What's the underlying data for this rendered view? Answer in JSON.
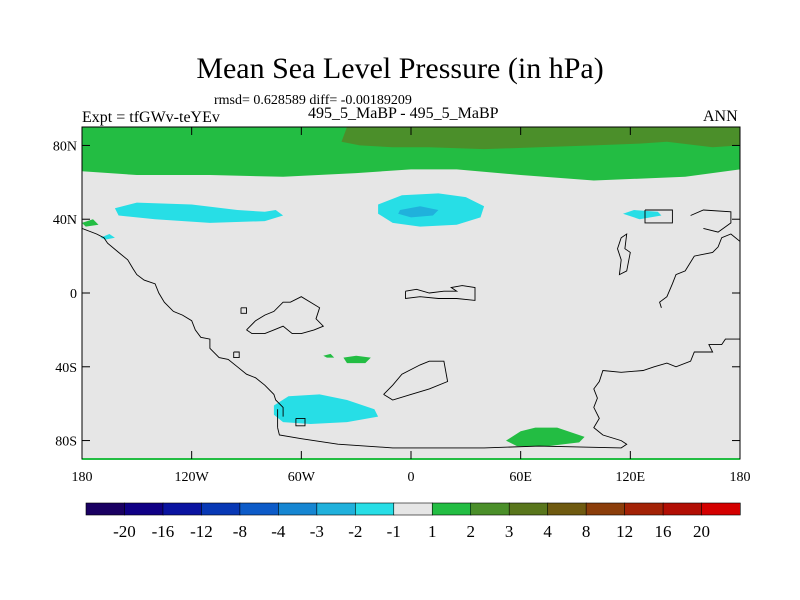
{
  "chart_data": {
    "type": "heatmap",
    "title": "Mean Sea Level Pressure (in hPa)",
    "stats_line": "rmsd= 0.628589 diff= -0.00189209",
    "expt_label": "Expt = tfGWv-teYEv",
    "cases_label": "495_5_MaBP - 495_5_MaBP",
    "season": "ANN",
    "xlim": [
      -180,
      180
    ],
    "ylim": [
      -90,
      90
    ],
    "x_ticks": [
      {
        "value": -180,
        "label": "180"
      },
      {
        "value": -120,
        "label": "120W"
      },
      {
        "value": -60,
        "label": "60W"
      },
      {
        "value": 0,
        "label": "0"
      },
      {
        "value": 60,
        "label": "60E"
      },
      {
        "value": 120,
        "label": "120E"
      },
      {
        "value": 180,
        "label": "180"
      }
    ],
    "y_ticks": [
      {
        "value": 80,
        "label": "80N"
      },
      {
        "value": 40,
        "label": "40N"
      },
      {
        "value": 0,
        "label": "0"
      },
      {
        "value": -40,
        "label": "40S"
      },
      {
        "value": -80,
        "label": "80S"
      }
    ],
    "colorbar": {
      "levels": [
        "-20",
        "-16",
        "-12",
        "-8",
        "-4",
        "-3",
        "-2",
        "-1",
        "1",
        "2",
        "3",
        "4",
        "8",
        "12",
        "16",
        "20"
      ],
      "colors": [
        "#1a0062",
        "#100085",
        "#0a13a0",
        "#0838b5",
        "#0d5bc8",
        "#1686d2",
        "#20b1dc",
        "#27dee6",
        "#e6e6e6",
        "#23bd43",
        "#4b8f2a",
        "#59761c",
        "#6f5a10",
        "#8b3d0a",
        "#a32206",
        "#b20e04",
        "#d40000"
      ]
    },
    "background_value_range": "-1 to 1",
    "regions": [
      {
        "name": "north-polar-band",
        "level": "1 to 2",
        "color": "#23bd43",
        "polygon": [
          [
            -180,
            90
          ],
          [
            180,
            90
          ],
          [
            180,
            67
          ],
          [
            150,
            63
          ],
          [
            100,
            61
          ],
          [
            60,
            64
          ],
          [
            25,
            67
          ],
          [
            0,
            67
          ],
          [
            -30,
            65
          ],
          [
            -70,
            63
          ],
          [
            -110,
            64
          ],
          [
            -150,
            64
          ],
          [
            -180,
            66
          ]
        ]
      },
      {
        "name": "arctic-high",
        "level": "2 to 3",
        "color": "#4b8f2a",
        "polygon": [
          [
            -35,
            90
          ],
          [
            180,
            90
          ],
          [
            180,
            80
          ],
          [
            165,
            79
          ],
          [
            140,
            82
          ],
          [
            125,
            81
          ],
          [
            100,
            80
          ],
          [
            70,
            79
          ],
          [
            40,
            78
          ],
          [
            10,
            79
          ],
          [
            -10,
            79
          ],
          [
            -28,
            80
          ],
          [
            -38,
            82
          ]
        ]
      },
      {
        "name": "north-pacific-low",
        "level": "-2 to -1",
        "color": "#27dee6",
        "polygon": [
          [
            -162,
            46
          ],
          [
            -150,
            49
          ],
          [
            -120,
            48
          ],
          [
            -95,
            45
          ],
          [
            -80,
            44
          ],
          [
            -74,
            45
          ],
          [
            -70,
            42
          ],
          [
            -80,
            39
          ],
          [
            -110,
            38
          ],
          [
            -140,
            40
          ],
          [
            -160,
            42
          ]
        ]
      },
      {
        "name": "north-atlantic-low",
        "level": "-2 to -1",
        "color": "#27dee6",
        "polygon": [
          [
            -18,
            48
          ],
          [
            -5,
            53
          ],
          [
            15,
            54
          ],
          [
            30,
            52
          ],
          [
            40,
            47
          ],
          [
            38,
            41
          ],
          [
            25,
            37
          ],
          [
            5,
            36
          ],
          [
            -10,
            38
          ],
          [
            -18,
            43
          ]
        ]
      },
      {
        "name": "north-atlantic-core",
        "level": "-3 to -2",
        "color": "#20b1dc",
        "polygon": [
          [
            -6,
            45
          ],
          [
            5,
            47
          ],
          [
            15,
            45
          ],
          [
            12,
            42
          ],
          [
            0,
            41
          ],
          [
            -7,
            43
          ]
        ]
      },
      {
        "name": "asia-low",
        "level": "-2 to -1",
        "color": "#27dee6",
        "polygon": [
          [
            116,
            43
          ],
          [
            122,
            45
          ],
          [
            135,
            44
          ],
          [
            137,
            42
          ],
          [
            125,
            40
          ]
        ]
      },
      {
        "name": "pacific-low-dot",
        "level": "-2 to -1",
        "color": "#27dee6",
        "polygon": [
          [
            -170,
            30
          ],
          [
            -165,
            32
          ],
          [
            -162,
            30
          ],
          [
            -167,
            29
          ]
        ]
      },
      {
        "name": "pacific-high-dot",
        "level": "1 to 2",
        "color": "#23bd43",
        "polygon": [
          [
            -180,
            38
          ],
          [
            -174,
            40
          ],
          [
            -171,
            37
          ],
          [
            -178,
            36
          ]
        ]
      },
      {
        "name": "southern-ocean-low",
        "level": "-2 to -1",
        "color": "#27dee6",
        "polygon": [
          [
            -75,
            -61
          ],
          [
            -67,
            -56
          ],
          [
            -50,
            -55
          ],
          [
            -35,
            -58
          ],
          [
            -20,
            -63
          ],
          [
            -18,
            -67
          ],
          [
            -35,
            -70
          ],
          [
            -55,
            -71
          ],
          [
            -70,
            -70
          ],
          [
            -75,
            -66
          ]
        ]
      },
      {
        "name": "indian-ocean-high",
        "level": "1 to 2",
        "color": "#23bd43",
        "polygon": [
          [
            52,
            -80
          ],
          [
            60,
            -75
          ],
          [
            68,
            -73
          ],
          [
            80,
            -73
          ],
          [
            95,
            -78
          ],
          [
            92,
            -81
          ],
          [
            75,
            -83
          ],
          [
            58,
            -83
          ]
        ]
      },
      {
        "name": "south-atlantic-high",
        "level": "1 to 2",
        "color": "#23bd43",
        "polygon": [
          [
            -37,
            -35
          ],
          [
            -30,
            -34
          ],
          [
            -22,
            -35
          ],
          [
            -25,
            -38
          ],
          [
            -35,
            -38
          ]
        ]
      },
      {
        "name": "south-atlantic-high-dot",
        "level": "1 to 2",
        "color": "#23bd43",
        "polygon": [
          [
            -48,
            -34
          ],
          [
            -44,
            -33
          ],
          [
            -42,
            -35
          ],
          [
            -46,
            -35
          ]
        ]
      }
    ],
    "coastlines": [
      {
        "name": "americas",
        "points": [
          [
            -180,
            35
          ],
          [
            -172,
            32
          ],
          [
            -168,
            30
          ],
          [
            -166,
            27
          ],
          [
            -160,
            22
          ],
          [
            -155,
            18
          ],
          [
            -152,
            13
          ],
          [
            -150,
            10
          ],
          [
            -146,
            7
          ],
          [
            -140,
            5
          ],
          [
            -138,
            0
          ],
          [
            -135,
            -5
          ],
          [
            -130,
            -10
          ],
          [
            -125,
            -12
          ],
          [
            -120,
            -15
          ],
          [
            -118,
            -20
          ],
          [
            -115,
            -24
          ],
          [
            -110,
            -25
          ],
          [
            -110,
            -30
          ],
          [
            -105,
            -35
          ],
          [
            -100,
            -36
          ],
          [
            -95,
            -40
          ],
          [
            -90,
            -44
          ],
          [
            -85,
            -46
          ],
          [
            -80,
            -50
          ],
          [
            -75,
            -55
          ],
          [
            -74,
            -58
          ],
          [
            -70,
            -62
          ],
          [
            -70,
            -67
          ]
        ]
      },
      {
        "name": "south-america-north",
        "points": [
          [
            -90,
            -20
          ],
          [
            -85,
            -15
          ],
          [
            -80,
            -12
          ],
          [
            -75,
            -10
          ],
          [
            -70,
            -5
          ],
          [
            -66,
            -5
          ],
          [
            -60,
            -2
          ],
          [
            -55,
            -5
          ],
          [
            -50,
            -8
          ],
          [
            -52,
            -14
          ],
          [
            -48,
            -18
          ],
          [
            -53,
            -20
          ],
          [
            -60,
            -22
          ],
          [
            -65,
            -22
          ],
          [
            -70,
            -18
          ],
          [
            -75,
            -20
          ],
          [
            -80,
            -22
          ],
          [
            -87,
            -22
          ],
          [
            -90,
            -20
          ]
        ]
      },
      {
        "name": "africa",
        "points": [
          [
            -3,
            1
          ],
          [
            3,
            2
          ],
          [
            10,
            0
          ],
          [
            18,
            1
          ],
          [
            25,
            1
          ],
          [
            22,
            3
          ],
          [
            28,
            4
          ],
          [
            35,
            3
          ],
          [
            35,
            -4
          ],
          [
            25,
            -3
          ],
          [
            15,
            -3
          ],
          [
            5,
            -2
          ],
          [
            -3,
            -3
          ],
          [
            -3,
            1
          ]
        ]
      },
      {
        "name": "east-landmass",
        "points": [
          [
            180,
            -25
          ],
          [
            172,
            -25
          ],
          [
            170,
            -28
          ],
          [
            163,
            -28
          ],
          [
            165,
            -32
          ],
          [
            155,
            -32
          ],
          [
            153,
            -37
          ],
          [
            145,
            -40
          ],
          [
            140,
            -38
          ],
          [
            133,
            -40
          ],
          [
            127,
            -42
          ],
          [
            115,
            -43
          ],
          [
            105,
            -42
          ],
          [
            103,
            -48
          ],
          [
            100,
            -52
          ],
          [
            102,
            -57
          ],
          [
            100,
            -62
          ],
          [
            103,
            -68
          ],
          [
            100,
            -73
          ],
          [
            105,
            -77
          ],
          [
            115,
            -80
          ],
          [
            118,
            -82
          ],
          [
            115,
            -84
          ],
          [
            70,
            -83
          ],
          [
            40,
            -84
          ],
          [
            -10,
            -84
          ],
          [
            -40,
            -82
          ],
          [
            -60,
            -79
          ],
          [
            -72,
            -77
          ],
          [
            -73,
            -73
          ]
        ]
      },
      {
        "name": "antarctic-peninsula",
        "points": [
          [
            -73,
            -73
          ],
          [
            -73,
            -63
          ]
        ]
      },
      {
        "name": "indian-island",
        "points": [
          [
            -15,
            -55
          ],
          [
            -10,
            -50
          ],
          [
            -5,
            -44
          ],
          [
            5,
            -39
          ],
          [
            10,
            -37
          ],
          [
            18,
            -37
          ],
          [
            20,
            -48
          ],
          [
            10,
            -52
          ],
          [
            0,
            -55
          ],
          [
            -10,
            -58
          ],
          [
            -15,
            -55
          ]
        ]
      },
      {
        "name": "asia-coast",
        "points": [
          [
            180,
            28
          ],
          [
            175,
            32
          ],
          [
            170,
            30
          ],
          [
            168,
            25
          ],
          [
            165,
            22
          ],
          [
            155,
            20
          ],
          [
            150,
            12
          ],
          [
            145,
            10
          ],
          [
            143,
            5
          ],
          [
            140,
            -2
          ],
          [
            136,
            -5
          ],
          [
            137,
            -8
          ]
        ]
      },
      {
        "name": "northeast-small",
        "points": [
          [
            153,
            42
          ],
          [
            160,
            45
          ],
          [
            175,
            44
          ],
          [
            175,
            38
          ],
          [
            168,
            33
          ],
          [
            160,
            35
          ]
        ]
      },
      {
        "name": "asia-inlet",
        "points": [
          [
            115,
            30
          ],
          [
            118,
            32
          ],
          [
            117,
            24
          ],
          [
            120,
            22
          ],
          [
            118,
            12
          ],
          [
            114,
            10
          ],
          [
            115,
            18
          ],
          [
            113,
            24
          ],
          [
            115,
            30
          ]
        ]
      },
      {
        "name": "ne-box",
        "points": [
          [
            128,
            45
          ],
          [
            143,
            45
          ],
          [
            143,
            38
          ],
          [
            128,
            38
          ],
          [
            128,
            45
          ]
        ]
      },
      {
        "name": "small-box-1",
        "points": [
          [
            -93,
            -8
          ],
          [
            -90,
            -8
          ],
          [
            -90,
            -11
          ],
          [
            -93,
            -11
          ],
          [
            -93,
            -8
          ]
        ]
      },
      {
        "name": "small-box-2",
        "points": [
          [
            -63,
            -68
          ],
          [
            -58,
            -68
          ],
          [
            -58,
            -72
          ],
          [
            -63,
            -72
          ],
          [
            -63,
            -68
          ]
        ]
      },
      {
        "name": "small-box-3",
        "points": [
          [
            -97,
            -32
          ],
          [
            -94,
            -32
          ],
          [
            -94,
            -35
          ],
          [
            -97,
            -35
          ],
          [
            -97,
            -32
          ]
        ]
      }
    ]
  }
}
